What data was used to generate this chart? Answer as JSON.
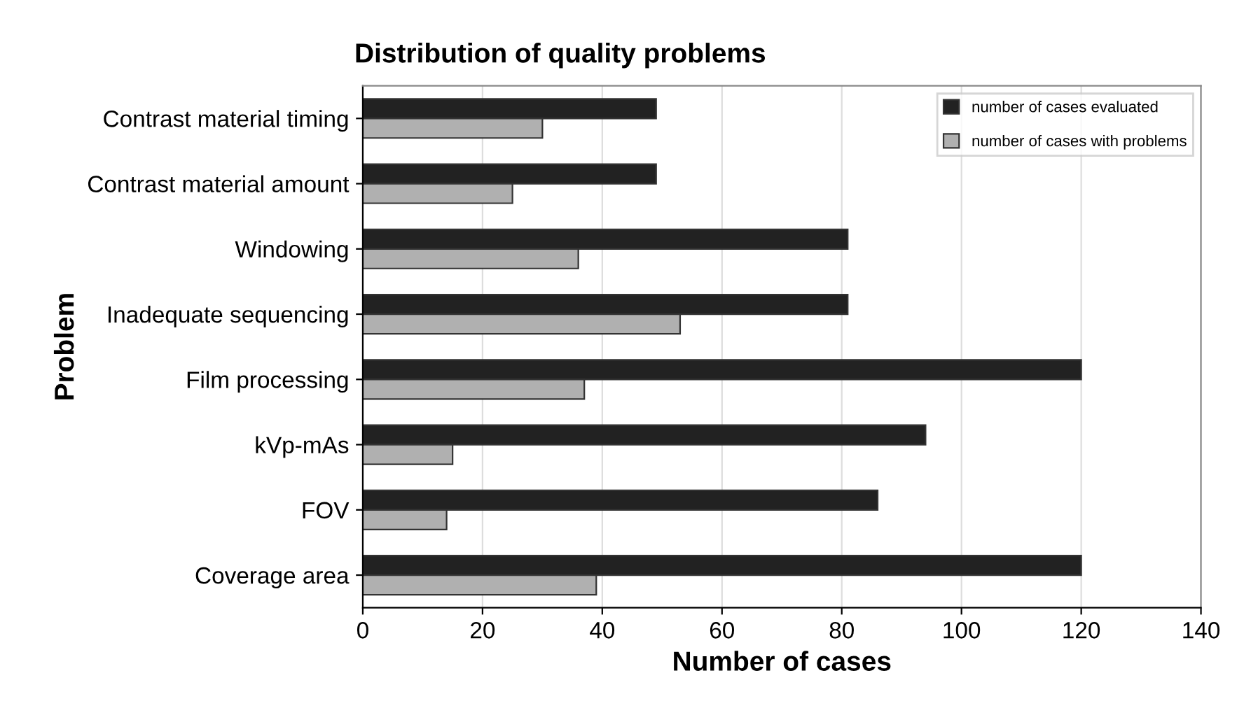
{
  "chart_data": {
    "type": "bar",
    "orientation": "horizontal",
    "title": "Distribution of quality problems",
    "xlabel": "Number of cases",
    "ylabel": "Problem",
    "categories": [
      "Contrast material timing",
      "Contrast material amount",
      "Windowing",
      "Inadequate sequencing",
      "Film processing",
      "kVp-mAs",
      "FOV",
      "Coverage area"
    ],
    "series": [
      {
        "name": "number of cases evaluated",
        "color": "#222222",
        "values": [
          49,
          49,
          81,
          81,
          120,
          94,
          86,
          120
        ]
      },
      {
        "name": "number of cases with problems",
        "color": "#b0b0b0",
        "values": [
          30,
          25,
          36,
          53,
          37,
          15,
          14,
          39
        ]
      }
    ],
    "xlim": [
      0,
      140
    ],
    "xticks": [
      0,
      20,
      40,
      60,
      80,
      100,
      120,
      140
    ],
    "grid": "x",
    "legend": "top right"
  }
}
